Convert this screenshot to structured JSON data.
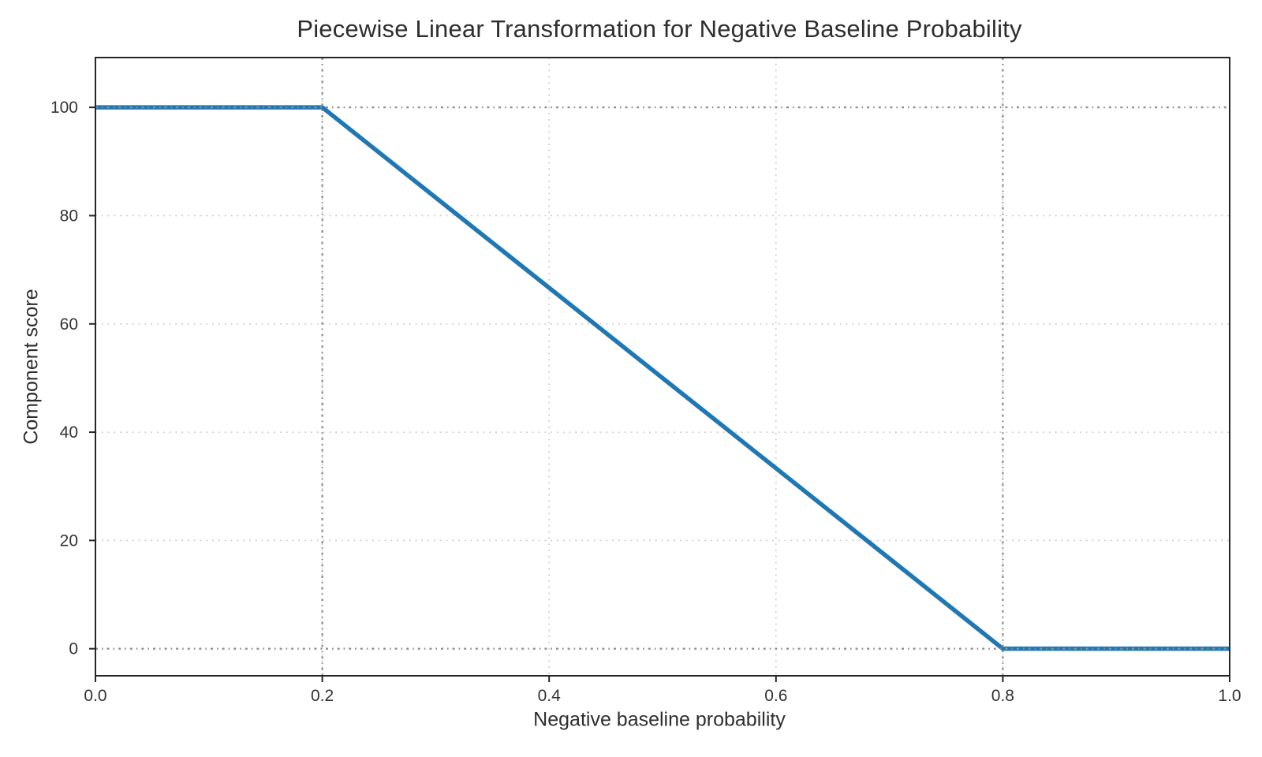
{
  "chart_data": {
    "type": "line",
    "title": "Piecewise Linear Transformation for Negative Baseline Probability",
    "xlabel": "Negative baseline probability",
    "ylabel": "Component score",
    "xlim": [
      0.0,
      1.0
    ],
    "ylim": [
      -5,
      109.2
    ],
    "x_ticks": [
      0.0,
      0.2,
      0.4,
      0.6,
      0.8,
      1.0
    ],
    "x_tick_labels": [
      "0.0",
      "0.2",
      "0.4",
      "0.6",
      "0.8",
      "1.0"
    ],
    "y_ticks": [
      0,
      20,
      40,
      60,
      80,
      100
    ],
    "y_tick_labels": [
      "0",
      "20",
      "40",
      "60",
      "80",
      "100"
    ],
    "grid": {
      "on": true,
      "style": "dotted",
      "x": [
        0.2,
        0.4,
        0.6,
        0.8
      ],
      "y": [
        20,
        40,
        60,
        80
      ]
    },
    "guides": {
      "style": "dotted",
      "x": [
        0.2,
        0.8
      ],
      "y": [
        0,
        100
      ]
    },
    "series": [
      {
        "name": "component-score",
        "color": "#1f77b4",
        "line_width": 5.5,
        "points": [
          [
            0.0,
            100
          ],
          [
            0.2,
            100
          ],
          [
            0.8,
            0
          ],
          [
            1.0,
            0
          ]
        ]
      }
    ],
    "legend": {
      "visible": false
    },
    "colors": {
      "series_blue": "#1f77b4",
      "grid_light": "#c6c6c6",
      "guide_gray": "#8f8f8f",
      "spine": "#262626",
      "text": "#333333"
    }
  }
}
